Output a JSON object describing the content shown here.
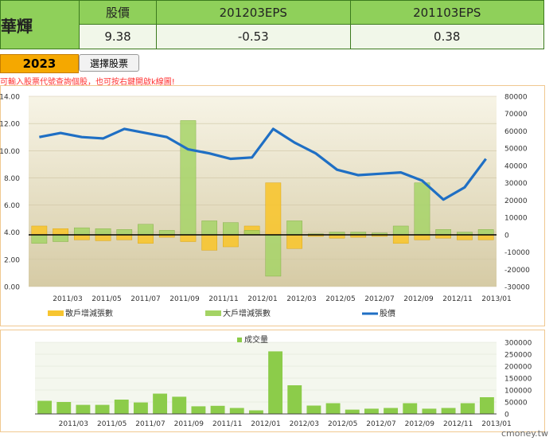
{
  "header": {
    "company_name": "華輝",
    "columns": [
      "股價",
      "201203EPS",
      "201103EPS"
    ],
    "values": [
      "9.38",
      "-0.53",
      "0.38"
    ]
  },
  "controls": {
    "year": "2023",
    "pick_label": "選擇股票",
    "hint": "可輸入股票代號查詢個股，也可按右鍵開啟k線圖!"
  },
  "watermark": "cmoney.tw",
  "colors": {
    "retail_bar": "#f7c530",
    "major_bar": "#a4d364",
    "price_line": "#1f6fc4",
    "volume_bar": "#8ccc4a"
  },
  "chart_data": [
    {
      "type": "bar",
      "x_ticks": [
        "2011/03",
        "2011/05",
        "2011/07",
        "2011/09",
        "2011/11",
        "2012/01",
        "2012/03",
        "2012/05",
        "2012/07",
        "2012/09",
        "2012/11",
        "2013/01"
      ],
      "left_axis": {
        "ticks": [
          "0.00",
          "2.00",
          "4.00",
          "6.00",
          "8.00",
          "10.00",
          "12.00",
          "14.00"
        ],
        "range": [
          0,
          14
        ]
      },
      "right_axis": {
        "ticks": [
          "-30000",
          "-20000",
          "-10000",
          "0",
          "10000",
          "20000",
          "30000",
          "40000",
          "50000",
          "60000",
          "70000",
          "80000"
        ],
        "range": [
          -30000,
          80000
        ]
      },
      "legend": [
        "散戶增減張數",
        "大戶增減張數",
        "股價"
      ],
      "series": [
        {
          "name": "散戶增減張數",
          "axis": "right",
          "values": [
            5000,
            3500,
            -3000,
            -3500,
            -3000,
            -5000,
            -1500,
            -4000,
            -9000,
            -7000,
            5000,
            30000,
            -8000,
            -1000,
            -2000,
            -1500,
            -1000,
            -5000,
            -3000,
            -2000,
            -3000,
            -3000
          ]
        },
        {
          "name": "大戶增減張數",
          "axis": "right",
          "values": [
            -5000,
            -4000,
            4000,
            3500,
            3000,
            6000,
            2500,
            66000,
            8000,
            7000,
            2500,
            -24000,
            8000,
            500,
            1500,
            1500,
            1000,
            5000,
            30000,
            3000,
            1500,
            3000
          ]
        },
        {
          "name": "股價",
          "axis": "left",
          "values": [
            11.0,
            11.3,
            11.0,
            10.9,
            11.6,
            11.3,
            11.0,
            10.1,
            9.8,
            9.4,
            9.5,
            11.6,
            10.6,
            9.8,
            8.6,
            8.2,
            8.3,
            8.4,
            7.8,
            6.4,
            7.3,
            9.4
          ]
        }
      ]
    },
    {
      "type": "bar",
      "x_ticks": [
        "2011/03",
        "2011/05",
        "2011/07",
        "2011/09",
        "2011/11",
        "2012/01",
        "2012/03",
        "2012/05",
        "2012/07",
        "2012/09",
        "2012/11",
        "2013/01"
      ],
      "right_axis": {
        "ticks": [
          "0",
          "50000",
          "100000",
          "150000",
          "200000",
          "250000",
          "300000"
        ],
        "range": [
          0,
          300000
        ]
      },
      "legend": [
        "成交量"
      ],
      "series": [
        {
          "name": "成交量",
          "values": [
            55000,
            50000,
            38000,
            38000,
            60000,
            48000,
            85000,
            72000,
            32000,
            34000,
            25000,
            15000,
            262000,
            120000,
            35000,
            45000,
            18000,
            22000,
            25000,
            45000,
            22000,
            25000,
            45000,
            70000
          ]
        }
      ]
    }
  ]
}
